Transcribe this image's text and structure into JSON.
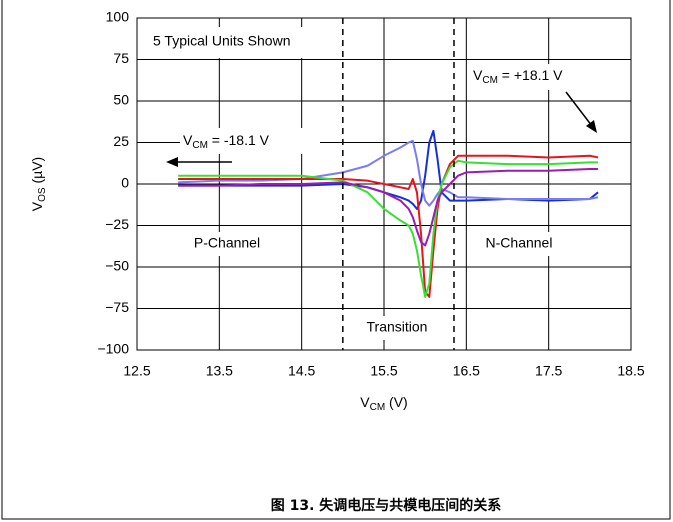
{
  "chart_data": {
    "type": "line",
    "annotations": {
      "units": "5 Typical Units Shown",
      "p_channel": "P-Channel",
      "n_channel": "N-Channel",
      "transition": "Transition",
      "vcm_neg": {
        "main": "V",
        "sub": "CM",
        "rest": " = -18.1 V"
      },
      "vcm_pos": {
        "main": "V",
        "sub": "CM",
        "rest": " = +18.1 V"
      }
    },
    "x_label": {
      "main": "V",
      "sub": "CM",
      "rest": " (V)"
    },
    "y_label": {
      "main": "V",
      "sub": "OS",
      "rest": " (µV)"
    },
    "caption": "图 13. 失调电压与共模电压间的关系",
    "transition_bounds": [
      15,
      16.35
    ],
    "x": [
      13,
      13.5,
      14,
      14.5,
      15,
      15.3,
      15.5,
      15.7,
      15.8,
      15.85,
      15.9,
      15.95,
      16,
      16.05,
      16.1,
      16.15,
      16.2,
      16.3,
      16.4,
      16.5,
      17,
      17.5,
      18,
      18.1
    ],
    "series": [
      {
        "color": "#1530d8",
        "values": [
          -1,
          -1,
          -1,
          -1,
          0,
          -2,
          -5,
          -8,
          -10,
          -12,
          -15,
          -10,
          5,
          25,
          32,
          15,
          -5,
          -10,
          -10,
          -10,
          -9,
          -10,
          -9,
          -5
        ]
      },
      {
        "color": "#7a7cf0",
        "values": [
          1,
          2,
          2,
          3,
          7,
          11,
          17,
          22,
          25,
          26,
          15,
          0,
          -10,
          -13,
          -10,
          -6,
          -3,
          -5,
          -8,
          -8,
          -9,
          -9,
          -9,
          -8
        ]
      },
      {
        "color": "#e8141c",
        "values": [
          3,
          3,
          3,
          3,
          3,
          2,
          0,
          -2,
          -3,
          3,
          -5,
          -30,
          -65,
          -68,
          -40,
          -15,
          0,
          12,
          17,
          17,
          17,
          16,
          17,
          16
        ]
      },
      {
        "color": "#38e034",
        "values": [
          5,
          5,
          5,
          5,
          2,
          -5,
          -15,
          -22,
          -25,
          -30,
          -40,
          -55,
          -68,
          -60,
          -30,
          -10,
          0,
          10,
          14,
          13,
          12,
          12,
          13,
          13
        ]
      },
      {
        "color": "#9a1cb0",
        "values": [
          -1,
          -1,
          0,
          0,
          1,
          -2,
          -5,
          -10,
          -15,
          -20,
          -28,
          -35,
          -37,
          -30,
          -20,
          -10,
          -5,
          0,
          5,
          7,
          8,
          8,
          9,
          9
        ]
      }
    ],
    "xlim": [
      12.5,
      18.5
    ],
    "xticks": [
      12.5,
      13.5,
      14.5,
      15.5,
      16.5,
      17.5,
      18.5
    ],
    "ylim": [
      -100,
      100
    ],
    "yticks": [
      {
        "value": -100,
        "label": "−100"
      },
      {
        "value": -75,
        "label": "−75"
      },
      {
        "value": -50,
        "label": "−50"
      },
      {
        "value": -25,
        "label": "−25"
      },
      0,
      25,
      50,
      75,
      100
    ],
    "grid": true
  }
}
